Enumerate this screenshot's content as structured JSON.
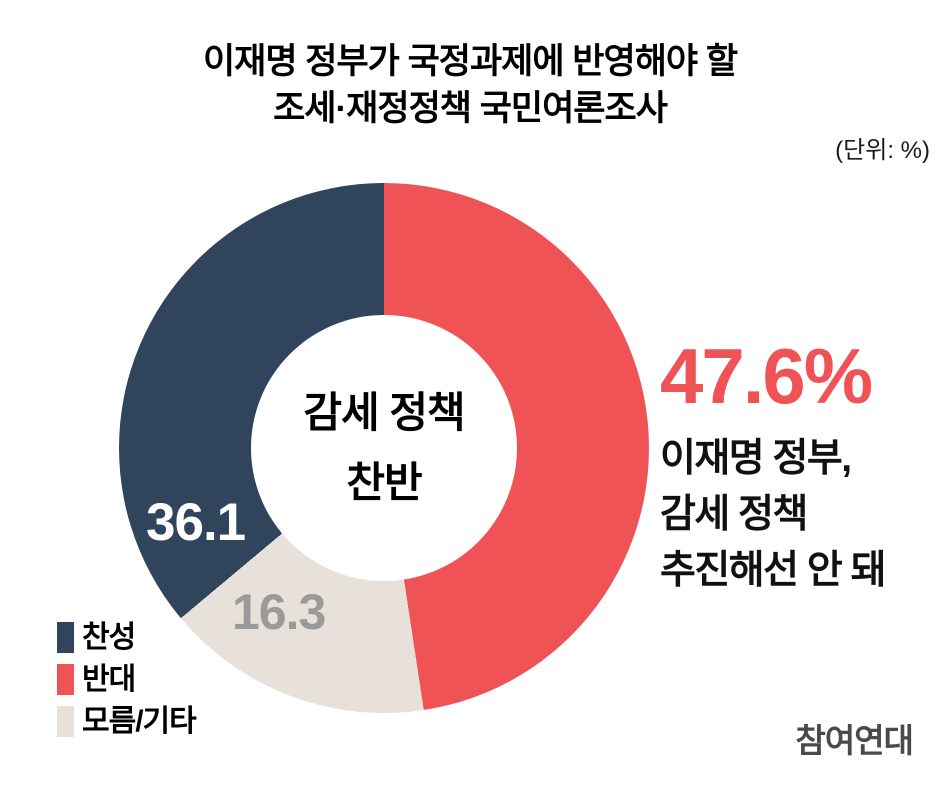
{
  "title": {
    "line1": "이재명 정부가 국정과제에 반영해야 할",
    "line2": "조세·재정정책 국민여론조사"
  },
  "unit_label": "(단위: %)",
  "chart_data": {
    "type": "pie",
    "subtype": "donut",
    "title": "감세 정책 찬반",
    "unit": "%",
    "start_angle_deg": 0,
    "direction": "clockwise",
    "inner_radius_ratio": 0.5,
    "center_label": {
      "line1": "감세 정책",
      "line2": "찬반"
    },
    "slices": [
      {
        "label": "반대",
        "value": 47.6,
        "color": "#ef5356",
        "value_label": null
      },
      {
        "label": "모름/기타",
        "value": 16.3,
        "color": "#e8e1da",
        "value_label": "16.3"
      },
      {
        "label": "찬성",
        "value": 36.1,
        "color": "#30455b",
        "value_label": "36.1"
      }
    ]
  },
  "annotation": {
    "value": "47.6%",
    "color": "#ef5356",
    "line1": "이재명 정부,",
    "line2": "감세 정책",
    "line3": "추진해선 안 돼"
  },
  "legend": {
    "items": [
      {
        "label": "찬성",
        "color": "#30455b"
      },
      {
        "label": "반대",
        "color": "#ef5356"
      },
      {
        "label": "모름/기타",
        "color": "#e8e1da"
      }
    ]
  },
  "logo": "참여연대"
}
